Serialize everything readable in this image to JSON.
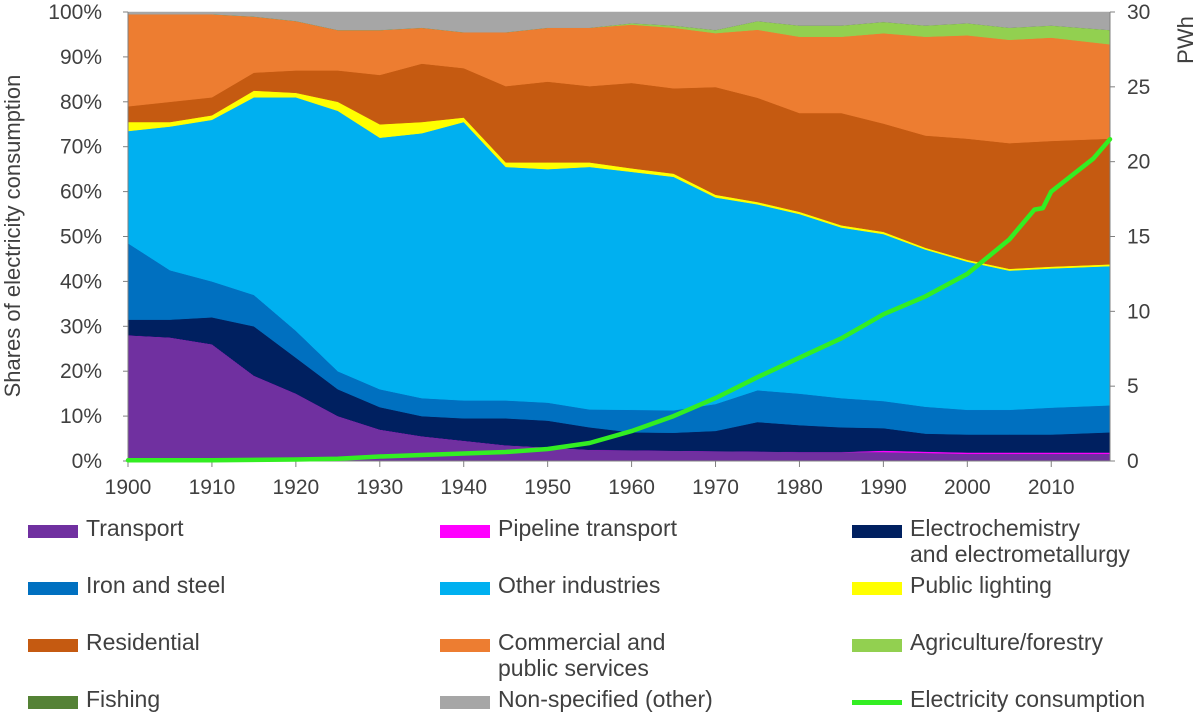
{
  "chart_data": {
    "type": "area",
    "stacked": true,
    "normalized": true,
    "title": "",
    "xlabel": "",
    "ylabel": "Shares of electricity consumption",
    "y2label": "PWh",
    "xlim": [
      1900,
      2017
    ],
    "ylim": [
      0,
      100
    ],
    "y2lim": [
      0,
      30
    ],
    "x_ticks": [
      "1900",
      "1910",
      "1920",
      "1930",
      "1940",
      "1950",
      "1960",
      "1970",
      "1980",
      "1990",
      "2000",
      "2010"
    ],
    "y_ticks": [
      "0%",
      "10%",
      "20%",
      "30%",
      "40%",
      "50%",
      "60%",
      "70%",
      "80%",
      "90%",
      "100%"
    ],
    "y2_ticks": [
      "0",
      "5",
      "10",
      "15",
      "20",
      "25",
      "30"
    ],
    "grid": false,
    "legend_position": "bottom",
    "x": [
      1900,
      1905,
      1910,
      1915,
      1920,
      1925,
      1930,
      1935,
      1940,
      1945,
      1950,
      1955,
      1960,
      1965,
      1970,
      1975,
      1980,
      1985,
      1990,
      1995,
      2000,
      2005,
      2010,
      2017
    ],
    "series": [
      {
        "name": "Transport",
        "color": "#7030a0",
        "values": [
          28,
          27.5,
          26,
          19,
          15,
          10,
          7,
          5.5,
          4.5,
          3.5,
          3,
          2.5,
          2.4,
          2.3,
          2.2,
          2.1,
          2,
          2,
          2,
          1.8,
          1.6,
          1.6,
          1.6,
          1.6
        ]
      },
      {
        "name": "Pipeline transport",
        "color": "#ff00ff",
        "values": [
          0,
          0,
          0,
          0,
          0,
          0,
          0,
          0,
          0,
          0,
          0,
          0,
          0,
          0,
          0,
          0,
          0,
          0,
          0.3,
          0.3,
          0.3,
          0.3,
          0.3,
          0.3
        ]
      },
      {
        "name": "Electrochemistry\nand electrometallurgy",
        "color": "#002060",
        "values": [
          3.5,
          4,
          6,
          11,
          8,
          6,
          5,
          4.5,
          5,
          6,
          6,
          5,
          4,
          4,
          4.5,
          6.5,
          6,
          5.5,
          5,
          4,
          4,
          4,
          4,
          4.5
        ]
      },
      {
        "name": "Iron and steel",
        "color": "#0070c0",
        "values": [
          17,
          11,
          8,
          7,
          6,
          4,
          4,
          4,
          4,
          4,
          4,
          4,
          5,
          5,
          6,
          7,
          7,
          6.5,
          6,
          6,
          5.5,
          5.5,
          6,
          6
        ]
      },
      {
        "name": "Other industries",
        "color": "#00b0f0",
        "values": [
          25,
          32,
          36,
          44,
          52,
          58,
          56,
          59,
          62,
          52,
          52,
          54,
          53,
          52,
          46,
          41,
          40,
          38,
          37,
          35,
          33,
          31,
          31,
          31
        ]
      },
      {
        "name": "Public lighting",
        "color": "#ffff00",
        "values": [
          2,
          1,
          1,
          1.5,
          1,
          2,
          3,
          2.5,
          1,
          1,
          1.5,
          1,
          0.8,
          0.7,
          0.6,
          0.5,
          0.5,
          0.5,
          0.5,
          0.4,
          0.4,
          0.4,
          0.4,
          0.4
        ]
      },
      {
        "name": "Residential",
        "color": "#c55a11",
        "values": [
          3.5,
          4.5,
          4,
          4,
          5,
          7,
          11,
          13,
          11,
          17,
          18,
          17,
          19,
          19,
          24,
          23,
          22,
          25,
          24,
          25,
          27,
          28,
          28,
          28
        ]
      },
      {
        "name": "Commercial and\npublic services",
        "color": "#ed7d31",
        "values": [
          20.5,
          19.5,
          18.5,
          12.5,
          11,
          9,
          10,
          8,
          8,
          12,
          12,
          13,
          13,
          13.5,
          12,
          15,
          17,
          17,
          20,
          22,
          23,
          23,
          23,
          21
        ]
      },
      {
        "name": "Agriculture/forestry",
        "color": "#92d050",
        "values": [
          0,
          0,
          0,
          0,
          0,
          0,
          0,
          0,
          0,
          0,
          0,
          0,
          0.3,
          0.5,
          0.7,
          1.9,
          2.5,
          2.5,
          2.5,
          2.5,
          2.7,
          2.7,
          2.7,
          3.2
        ]
      },
      {
        "name": "Fishing",
        "color": "#548235",
        "values": [
          0,
          0,
          0,
          0,
          0,
          0,
          0,
          0,
          0,
          0,
          0,
          0,
          0,
          0,
          0,
          0,
          0,
          0,
          0,
          0,
          0,
          0,
          0,
          0
        ]
      },
      {
        "name": "Non-specified (other)",
        "color": "#a6a6a6",
        "values": [
          0.5,
          0.5,
          0.5,
          1,
          2,
          4,
          4,
          3.5,
          4.5,
          4.5,
          3.5,
          3.5,
          2.5,
          3,
          4,
          2,
          3,
          3,
          2.2,
          3,
          2.5,
          3.5,
          3,
          4
        ]
      }
    ],
    "line_series": {
      "name": "Electricity consumption",
      "color": "#33ee22",
      "axis": "right",
      "x": [
        1900,
        1910,
        1920,
        1925,
        1930,
        1935,
        1940,
        1945,
        1950,
        1955,
        1960,
        1965,
        1970,
        1975,
        1980,
        1985,
        1990,
        1995,
        2000,
        2005,
        2008,
        2009,
        2010,
        2015,
        2017
      ],
      "values": [
        0.05,
        0.05,
        0.1,
        0.15,
        0.3,
        0.4,
        0.5,
        0.6,
        0.8,
        1.2,
        2,
        3,
        4.2,
        5.6,
        6.9,
        8.2,
        9.8,
        11,
        12.5,
        14.8,
        16.8,
        16.9,
        18,
        20.2,
        21.5
      ]
    }
  },
  "legend": [
    {
      "name": "Transport",
      "color": "#7030a0",
      "kind": "box"
    },
    {
      "name": "Pipeline transport",
      "color": "#ff00ff",
      "kind": "box"
    },
    {
      "name": "Electrochemistry\nand electrometallurgy",
      "color": "#002060",
      "kind": "box"
    },
    {
      "name": "Iron and steel",
      "color": "#0070c0",
      "kind": "box"
    },
    {
      "name": "Other industries",
      "color": "#00b0f0",
      "kind": "box"
    },
    {
      "name": "Public lighting",
      "color": "#ffff00",
      "kind": "box"
    },
    {
      "name": "Residential",
      "color": "#c55a11",
      "kind": "box"
    },
    {
      "name": "Commercial and\npublic services",
      "color": "#ed7d31",
      "kind": "box"
    },
    {
      "name": "Agriculture/forestry",
      "color": "#92d050",
      "kind": "box"
    },
    {
      "name": "Fishing",
      "color": "#548235",
      "kind": "box"
    },
    {
      "name": "Non-specified (other)",
      "color": "#a6a6a6",
      "kind": "box"
    },
    {
      "name": "Electricity consumption",
      "color": "#33ee22",
      "kind": "line"
    }
  ]
}
